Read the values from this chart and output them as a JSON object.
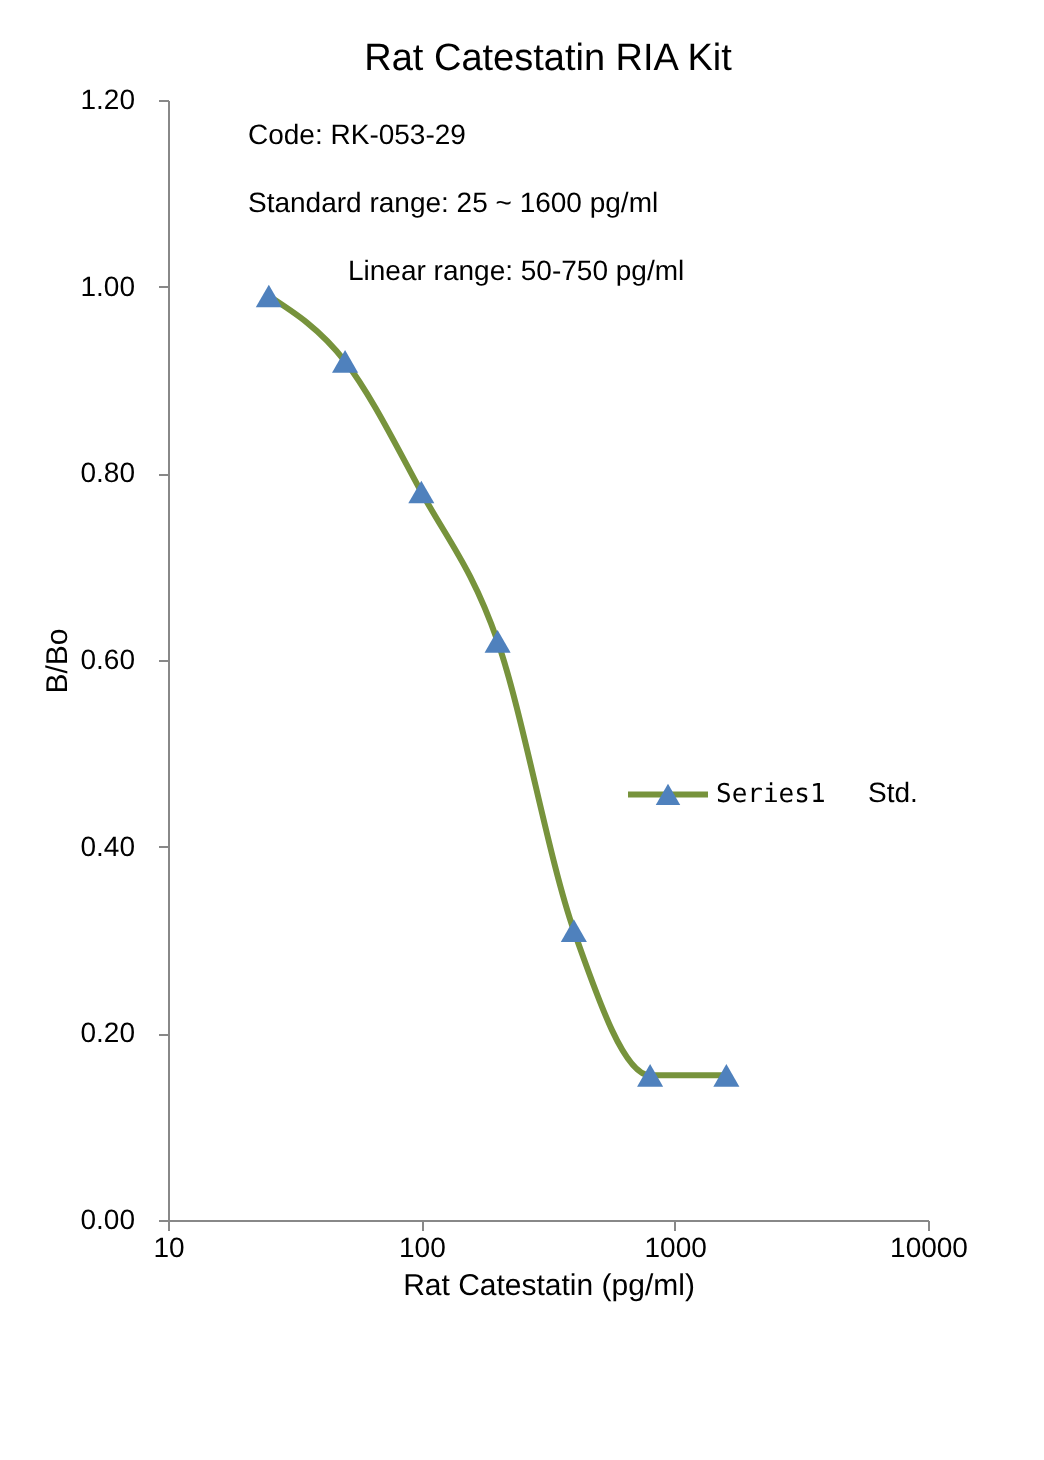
{
  "chart_data": {
    "type": "line",
    "title": "Rat Catestatin RIA Kit",
    "xlabel": "Rat Catestatin (pg/ml)",
    "ylabel": "B/Bo",
    "x": [
      25,
      50,
      100,
      200,
      400,
      800,
      1600
    ],
    "series": [
      {
        "name": "Series1",
        "color": "#77933c",
        "colors": [
          "#4f81bd",
          "#4f81bd",
          "#4f81bd",
          "#4f81bd",
          "#4f81bd",
          "#4f81bd",
          "#4f81bd"
        ],
        "values": [
          0.99,
          0.92,
          0.78,
          0.62,
          0.31,
          0.155,
          0.155
        ]
      }
    ],
    "log": "x",
    "xlim": [
      10,
      10000
    ],
    "xticks": [
      10,
      100,
      1000,
      10000
    ],
    "ylim": [
      0,
      1.2
    ],
    "yticks": [
      {
        "value": 0,
        "label": "0.00"
      },
      {
        "value": 0.2,
        "label": "0.20"
      },
      {
        "value": 0.4,
        "label": "0.40"
      },
      {
        "value": 0.6,
        "label": "0.60"
      },
      {
        "value": 0.8,
        "label": "0.80"
      },
      {
        "value": 1.0,
        "label": "1.00"
      },
      {
        "value": 1.2,
        "label": "1.20"
      }
    ],
    "annotations": [
      "Code: RK-053-29",
      "Standard range: 25 ~ 1600 pg/ml",
      "Linear range: 50-750 pg/ml",
      "Std."
    ],
    "legend": "right",
    "marker": "triangle",
    "line_style": "solid",
    "grid": false
  }
}
